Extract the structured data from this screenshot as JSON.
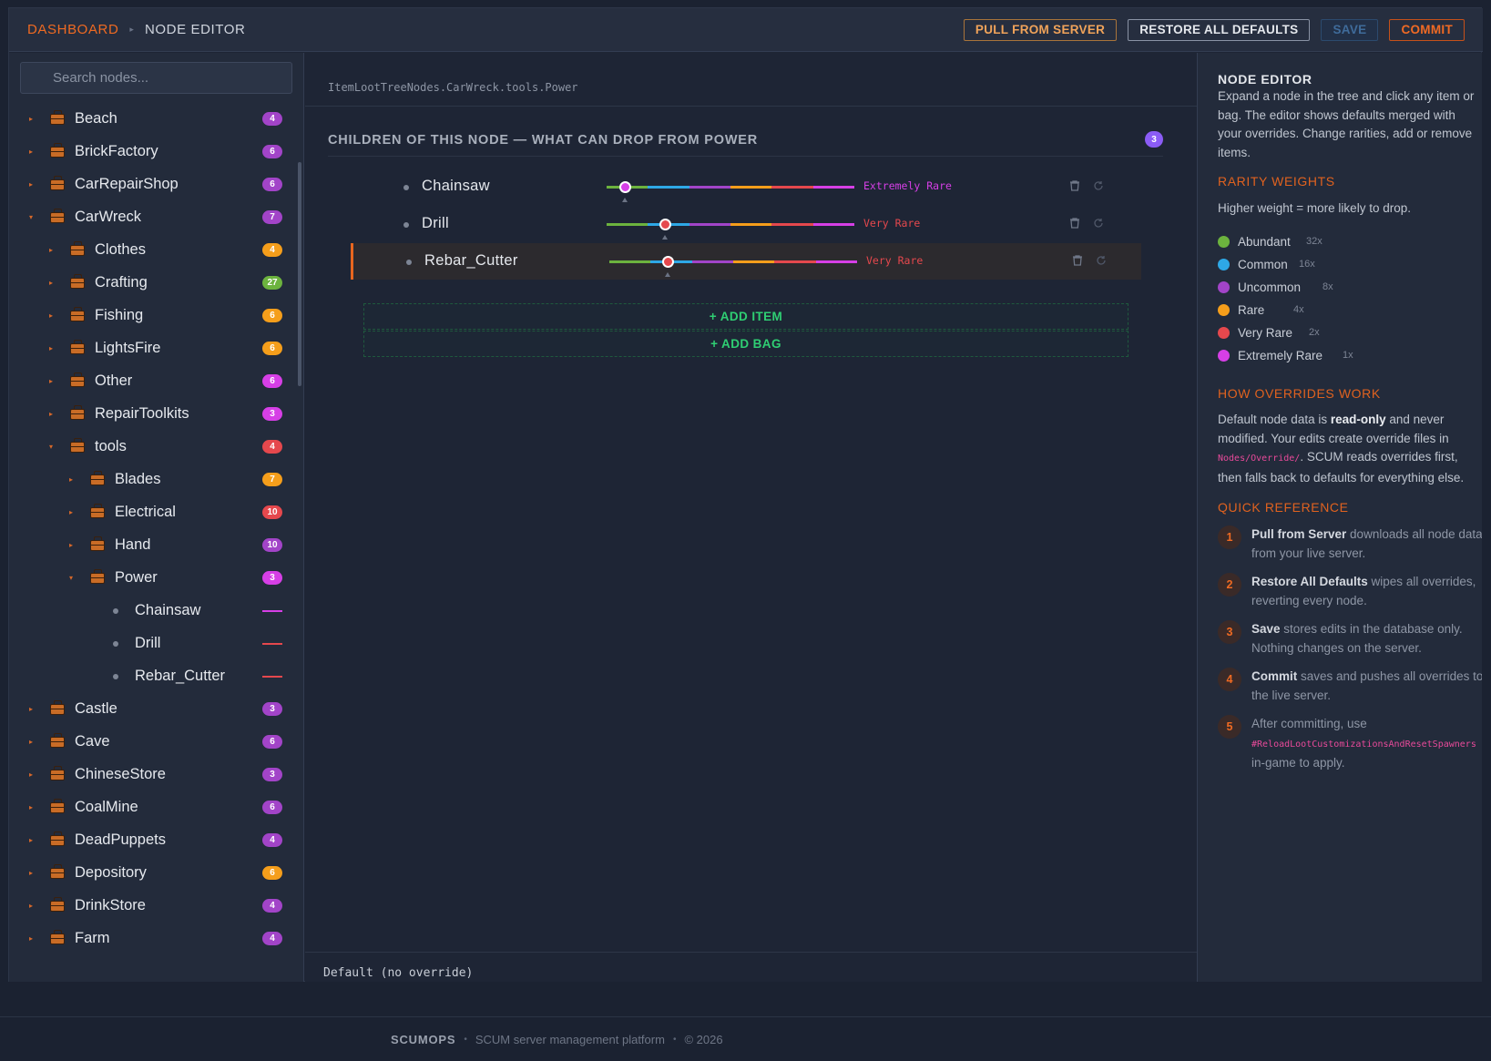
{
  "breadcrumb": {
    "root": "DASHBOARD",
    "current": "NODE EDITOR"
  },
  "toolbar": {
    "pull": "PULL FROM SERVER",
    "restore": "RESTORE ALL DEFAULTS",
    "save": "SAVE",
    "commit": "COMMIT"
  },
  "search": {
    "placeholder": "Search nodes..."
  },
  "tree": [
    {
      "label": "Beach",
      "count": "4",
      "color": "#a244c8",
      "depth": 0,
      "expanded": false,
      "type": "bag"
    },
    {
      "label": "BrickFactory",
      "count": "6",
      "color": "#a244c8",
      "depth": 0,
      "expanded": false,
      "type": "bag"
    },
    {
      "label": "CarRepairShop",
      "count": "6",
      "color": "#a244c8",
      "depth": 0,
      "expanded": false,
      "type": "bag"
    },
    {
      "label": "CarWreck",
      "count": "7",
      "color": "#a244c8",
      "depth": 0,
      "expanded": true,
      "type": "bag"
    },
    {
      "label": "Clothes",
      "count": "4",
      "color": "#f59e1b",
      "depth": 1,
      "expanded": false,
      "type": "bag"
    },
    {
      "label": "Crafting",
      "count": "27",
      "color": "#6cb33e",
      "depth": 1,
      "expanded": false,
      "type": "bag"
    },
    {
      "label": "Fishing",
      "count": "6",
      "color": "#f59e1b",
      "depth": 1,
      "expanded": false,
      "type": "bag"
    },
    {
      "label": "LightsFire",
      "count": "6",
      "color": "#f59e1b",
      "depth": 1,
      "expanded": false,
      "type": "bag"
    },
    {
      "label": "Other",
      "count": "6",
      "color": "#d63fe6",
      "depth": 1,
      "expanded": false,
      "type": "bag"
    },
    {
      "label": "RepairToolkits",
      "count": "3",
      "color": "#d63fe6",
      "depth": 1,
      "expanded": false,
      "type": "bag"
    },
    {
      "label": "tools",
      "count": "4",
      "color": "#e5484d",
      "depth": 1,
      "expanded": true,
      "type": "bag"
    },
    {
      "label": "Blades",
      "count": "7",
      "color": "#f59e1b",
      "depth": 2,
      "expanded": false,
      "type": "bag"
    },
    {
      "label": "Electrical",
      "count": "10",
      "color": "#e5484d",
      "depth": 2,
      "expanded": false,
      "type": "bag"
    },
    {
      "label": "Hand",
      "count": "10",
      "color": "#a244c8",
      "depth": 2,
      "expanded": false,
      "type": "bag"
    },
    {
      "label": "Power",
      "count": "3",
      "color": "#d63fe6",
      "depth": 2,
      "expanded": true,
      "type": "bag"
    },
    {
      "label": "Chainsaw",
      "color": "#d63fe6",
      "depth": 3,
      "type": "item"
    },
    {
      "label": "Drill",
      "color": "#e5484d",
      "depth": 3,
      "type": "item"
    },
    {
      "label": "Rebar_Cutter",
      "color": "#e5484d",
      "depth": 3,
      "type": "item"
    },
    {
      "label": "Castle",
      "count": "3",
      "color": "#a244c8",
      "depth": 0,
      "expanded": false,
      "type": "bag"
    },
    {
      "label": "Cave",
      "count": "6",
      "color": "#a244c8",
      "depth": 0,
      "expanded": false,
      "type": "bag"
    },
    {
      "label": "ChineseStore",
      "count": "3",
      "color": "#a244c8",
      "depth": 0,
      "expanded": false,
      "type": "bag"
    },
    {
      "label": "CoalMine",
      "count": "6",
      "color": "#a244c8",
      "depth": 0,
      "expanded": false,
      "type": "bag"
    },
    {
      "label": "DeadPuppets",
      "count": "4",
      "color": "#a244c8",
      "depth": 0,
      "expanded": false,
      "type": "bag"
    },
    {
      "label": "Depository",
      "count": "6",
      "color": "#f59e1b",
      "depth": 0,
      "expanded": false,
      "type": "bag"
    },
    {
      "label": "DrinkStore",
      "count": "4",
      "color": "#a244c8",
      "depth": 0,
      "expanded": false,
      "type": "bag"
    },
    {
      "label": "Farm",
      "count": "4",
      "color": "#a244c8",
      "depth": 0,
      "expanded": false,
      "type": "bag"
    }
  ],
  "editor": {
    "path": "ItemLootTreeNodes.CarWreck.tools.Power",
    "section_title": "CHILDREN OF THIS NODE — WHAT CAN DROP FROM POWER",
    "child_count": "3",
    "children": [
      {
        "name": "Chainsaw",
        "rarity": "Extremely Rare",
        "rarity_index": 5,
        "rarity_color": "#d63fe6",
        "selected": false
      },
      {
        "name": "Drill",
        "rarity": "Very Rare",
        "rarity_index": 4,
        "rarity_color": "#e5484d",
        "selected": false
      },
      {
        "name": "Rebar_Cutter",
        "rarity": "Very Rare",
        "rarity_index": 4,
        "rarity_color": "#e5484d",
        "selected": true
      }
    ],
    "add_item": "+ ADD ITEM",
    "add_bag": "+ ADD BAG",
    "status": "Default (no override)"
  },
  "slider_colors": [
    "#6cb33e",
    "#2ea8e6",
    "#a244c8",
    "#f59e1b",
    "#e5484d",
    "#d63fe6"
  ],
  "help": {
    "title": "NODE EDITOR",
    "intro": "Expand a node in the tree and click any item or bag. The editor shows defaults merged with your overrides. Change rarities, add or remove items.",
    "weights_title": "RARITY WEIGHTS",
    "weights_intro": "Higher weight = more likely to drop.",
    "weights": [
      {
        "name": "Abundant",
        "weight": "32x",
        "color": "#6cb33e"
      },
      {
        "name": "Common",
        "weight": "16x",
        "color": "#2ea8e6"
      },
      {
        "name": "Uncommon",
        "weight": "8x",
        "color": "#a244c8"
      },
      {
        "name": "Rare",
        "weight": "4x",
        "color": "#f59e1b"
      },
      {
        "name": "Very Rare",
        "weight": "2x",
        "color": "#e5484d"
      },
      {
        "name": "Extremely Rare",
        "weight": "1x",
        "color": "#d63fe6"
      }
    ],
    "overrides_title": "HOW OVERRIDES WORK",
    "overrides_p1": "Default node data is ",
    "overrides_bold": "read-only",
    "overrides_p2": " and never modified. Your edits create override files in ",
    "overrides_code": "Nodes/Override/",
    "overrides_p3": ". SCUM reads overrides first, then falls back to defaults for everything else.",
    "quick_title": "QUICK REFERENCE",
    "quick": [
      {
        "num": "1",
        "bold": "Pull from Server",
        "text": " downloads all node data from your live server."
      },
      {
        "num": "2",
        "bold": "Restore All Defaults",
        "text": " wipes all overrides, reverting every node."
      },
      {
        "num": "3",
        "bold": "Save",
        "text": " stores edits in the database only. Nothing changes on the server."
      },
      {
        "num": "4",
        "bold": "Commit",
        "text": " saves and pushes all overrides to the live server."
      }
    ],
    "quick5_num": "5",
    "quick5_a": "After committing, use",
    "quick5_code": "#ReloadLootCustomizationsAndResetSpawners",
    "quick5_b": "in-game to apply."
  },
  "footer": {
    "brand": "SCUMOPS",
    "tagline": "SCUM server management platform",
    "copyright": "© 2026"
  }
}
